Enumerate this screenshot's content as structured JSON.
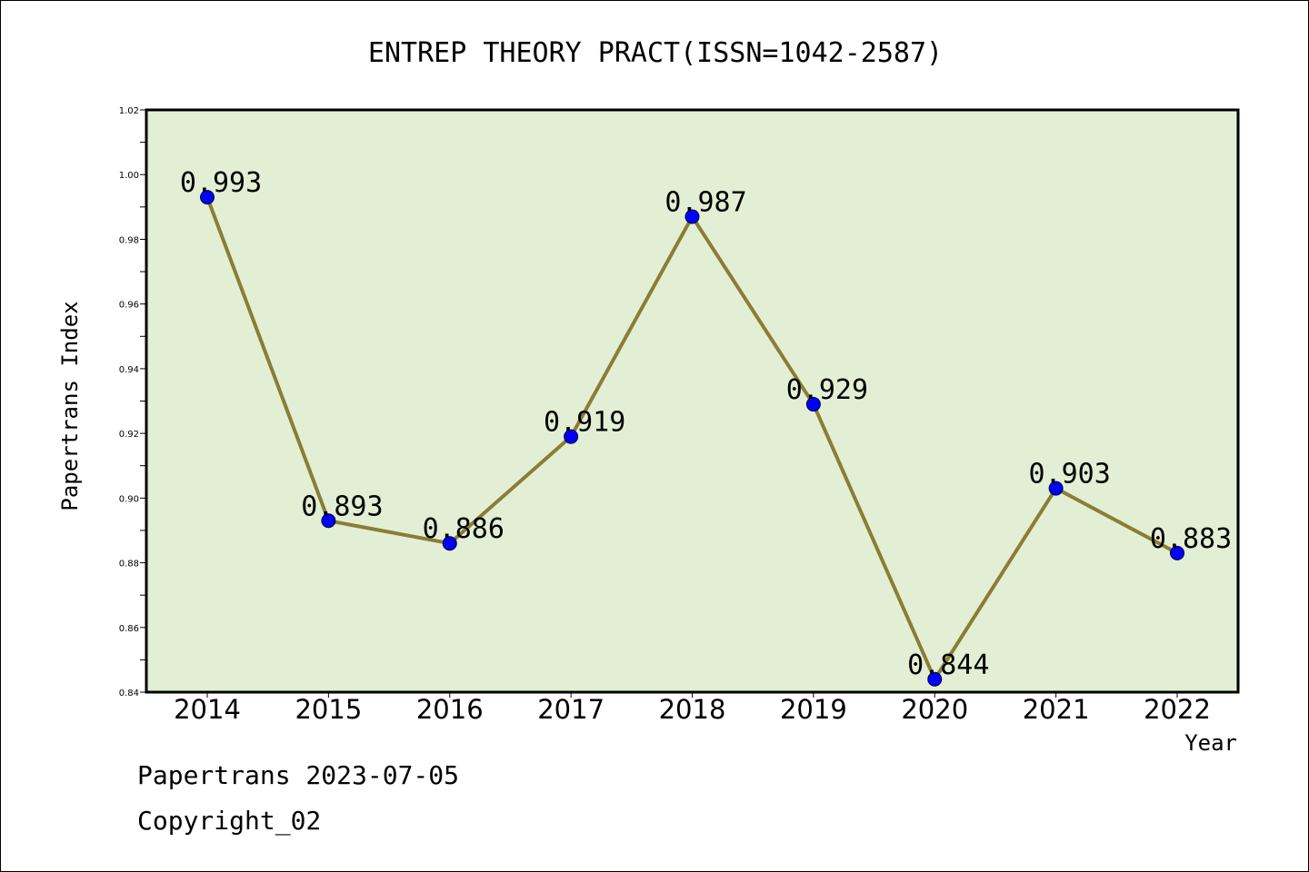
{
  "chart_data": {
    "type": "line",
    "title": "ENTREP THEORY PRACT(ISSN=1042-2587)",
    "xlabel": "Year",
    "ylabel": "Papertrans Index",
    "categories": [
      "2014",
      "2015",
      "2016",
      "2017",
      "2018",
      "2019",
      "2020",
      "2021",
      "2022"
    ],
    "series": [
      {
        "values": [
          0.993,
          0.893,
          0.886,
          0.919,
          0.987,
          0.929,
          0.844,
          0.903,
          0.883
        ]
      }
    ],
    "data_labels": [
      "0.993",
      "0.893",
      "0.886",
      "0.919",
      "0.987",
      "0.929",
      "0.844",
      "0.903",
      "0.883"
    ],
    "ylim": [
      0.84,
      1.02
    ],
    "yticks": [
      "0.84",
      "0.86",
      "0.88",
      "0.90",
      "0.92",
      "0.94",
      "0.96",
      "0.98",
      "1.00",
      "1.02"
    ],
    "grid": false,
    "colors": {
      "plot_background": "#e2efd5",
      "line": "#8b7d34",
      "marker": "#0000ff"
    }
  },
  "footer": {
    "line1": "Papertrans 2023-07-05",
    "line2": "Copyright_02"
  }
}
